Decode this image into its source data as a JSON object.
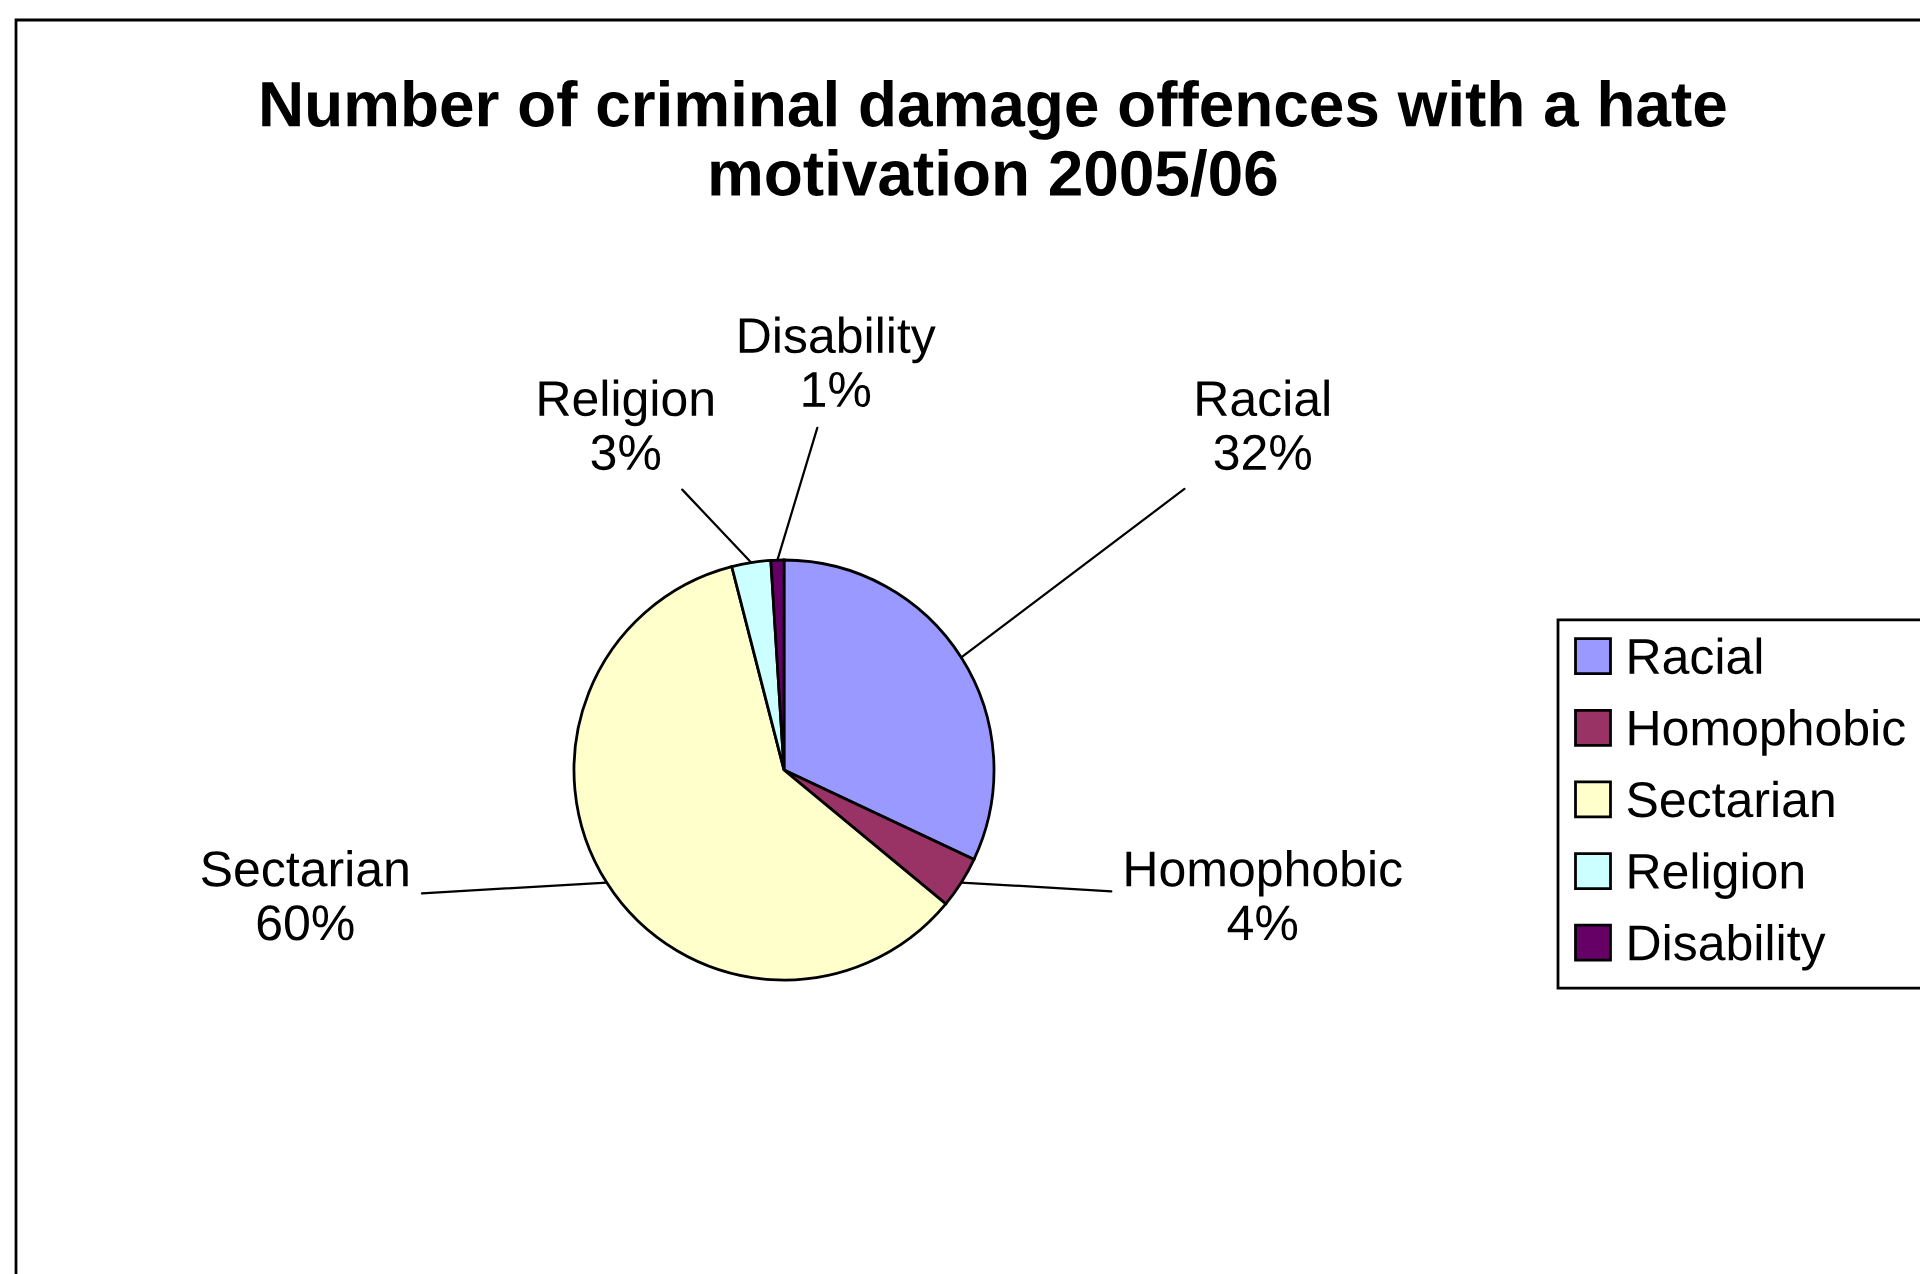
{
  "chart_data": {
    "type": "pie",
    "title": "Number of criminal damage offences with a hate motivation 2005/06",
    "categories": [
      "Racial",
      "Homophobic",
      "Sectarian",
      "Religion",
      "Disability"
    ],
    "values": [
      32,
      4,
      60,
      3,
      1
    ],
    "value_labels": [
      "32%",
      "4%",
      "60%",
      "3%",
      "1%"
    ],
    "colors": [
      "#9999ff",
      "#993366",
      "#ffffcc",
      "#ccffff",
      "#660066"
    ],
    "legend": "right"
  }
}
